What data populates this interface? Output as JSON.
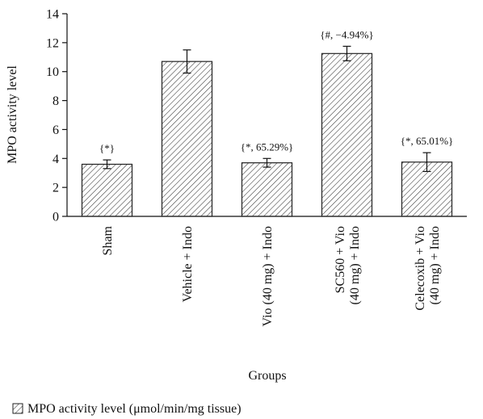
{
  "chart_data": {
    "type": "bar",
    "ylabel": "MPO activity level",
    "xlabel": "Groups",
    "ylim": [
      0,
      14
    ],
    "yticks": [
      0,
      2,
      4,
      6,
      8,
      10,
      12,
      14
    ],
    "grid": false,
    "legend_position": "bottom-left",
    "categories": [
      [
        "Sham"
      ],
      [
        "Vehicle + Indo"
      ],
      [
        "Vio (40 mg) + Indo"
      ],
      [
        "SC560 + Vio",
        "(40 mg) + Indo"
      ],
      [
        "Celecoxib + Vio",
        "(40 mg) + Indo"
      ]
    ],
    "series": [
      {
        "name": "MPO activity level (μmol/min/mg tissue)",
        "values": [
          3.6,
          10.7,
          3.7,
          11.25,
          3.75
        ],
        "errors": [
          0.3,
          0.8,
          0.3,
          0.5,
          0.65
        ]
      }
    ],
    "annotations": [
      "{*}",
      "",
      "{*, 65.29%}",
      "{#, −4.94%}",
      "{*, 65.01%}"
    ],
    "colors": {
      "bar_stroke": "#222222",
      "hatch": "#333333",
      "axis": "#111111"
    }
  }
}
